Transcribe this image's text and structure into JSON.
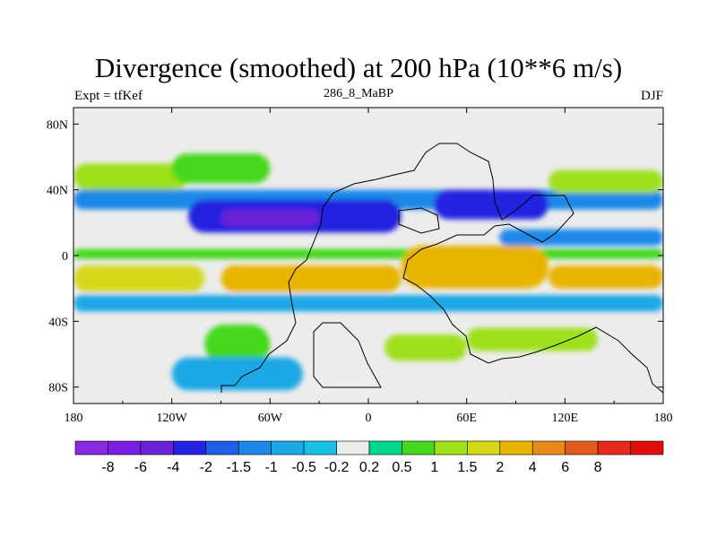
{
  "chart_data": {
    "type": "heatmap",
    "title": "Divergence (smoothed) at 200 hPa (10**6 m/s)",
    "left_label": "Expt = tfKef",
    "center_label": "286_8_MaBP",
    "right_label": "DJF",
    "x_range": [
      -180,
      180
    ],
    "y_range": [
      -90,
      90
    ],
    "x_ticks": [
      {
        "value": -180,
        "label": "180"
      },
      {
        "value": -120,
        "label": "120W"
      },
      {
        "value": -60,
        "label": "60W"
      },
      {
        "value": 0,
        "label": "0"
      },
      {
        "value": 60,
        "label": "60E"
      },
      {
        "value": 120,
        "label": "120E"
      },
      {
        "value": 180,
        "label": "180"
      }
    ],
    "y_ticks": [
      {
        "value": 80,
        "label": "80N"
      },
      {
        "value": 40,
        "label": "40N"
      },
      {
        "value": 0,
        "label": "0"
      },
      {
        "value": -40,
        "label": "40S"
      },
      {
        "value": -80,
        "label": "80S"
      }
    ],
    "colorbar": {
      "colors": [
        "#8a2be2",
        "#7a1fe0",
        "#6b22d8",
        "#2222e0",
        "#1f5fe8",
        "#1e88e8",
        "#1aa8e6",
        "#19c2e4",
        "#ececec",
        "#00d68a",
        "#44d81e",
        "#9ee01a",
        "#d6d81a",
        "#e8b400",
        "#e88a1a",
        "#e45a1a",
        "#e42a1a",
        "#e00e0e"
      ],
      "labels": [
        "-8",
        "-6",
        "-4",
        "-2",
        "-1.5",
        "-1",
        "-0.5",
        "-0.2",
        "0.2",
        "0.5",
        "1",
        "1.5",
        "2",
        "4",
        "6",
        "8"
      ]
    },
    "bands": [
      {
        "lon": [
          -180,
          180
        ],
        "lat": [
          28,
          40
        ],
        "value": -1.5
      },
      {
        "lon": [
          -180,
          -110
        ],
        "lat": [
          40,
          56
        ],
        "value": 1.2
      },
      {
        "lon": [
          -120,
          -60
        ],
        "lat": [
          44,
          62
        ],
        "value": 0.8
      },
      {
        "lon": [
          110,
          180
        ],
        "lat": [
          38,
          52
        ],
        "value": 1.3
      },
      {
        "lon": [
          -110,
          20
        ],
        "lat": [
          14,
          34
        ],
        "value": -2.2
      },
      {
        "lon": [
          -90,
          -30
        ],
        "lat": [
          18,
          28
        ],
        "value": -5.0
      },
      {
        "lon": [
          40,
          110
        ],
        "lat": [
          22,
          40
        ],
        "value": -3.0
      },
      {
        "lon": [
          80,
          180
        ],
        "lat": [
          6,
          16
        ],
        "value": -1.2
      },
      {
        "lon": [
          -180,
          180
        ],
        "lat": [
          -2,
          4
        ],
        "value": 0.6
      },
      {
        "lon": [
          -180,
          -100
        ],
        "lat": [
          -22,
          -6
        ],
        "value": 1.8
      },
      {
        "lon": [
          -90,
          20
        ],
        "lat": [
          -22,
          -6
        ],
        "value": 2.4
      },
      {
        "lon": [
          20,
          110
        ],
        "lat": [
          -20,
          6
        ],
        "value": 3.0
      },
      {
        "lon": [
          110,
          180
        ],
        "lat": [
          -20,
          -6
        ],
        "value": 2.1
      },
      {
        "lon": [
          -180,
          180
        ],
        "lat": [
          -34,
          -24
        ],
        "value": -0.6
      },
      {
        "lon": [
          -100,
          -60
        ],
        "lat": [
          -66,
          -42
        ],
        "value": 0.9
      },
      {
        "lon": [
          10,
          60
        ],
        "lat": [
          -64,
          -48
        ],
        "value": 1.0
      },
      {
        "lon": [
          60,
          140
        ],
        "lat": [
          -58,
          -44
        ],
        "value": 1.2
      },
      {
        "lon": [
          -120,
          -40
        ],
        "lat": [
          -82,
          -62
        ],
        "value": -0.8
      }
    ]
  }
}
